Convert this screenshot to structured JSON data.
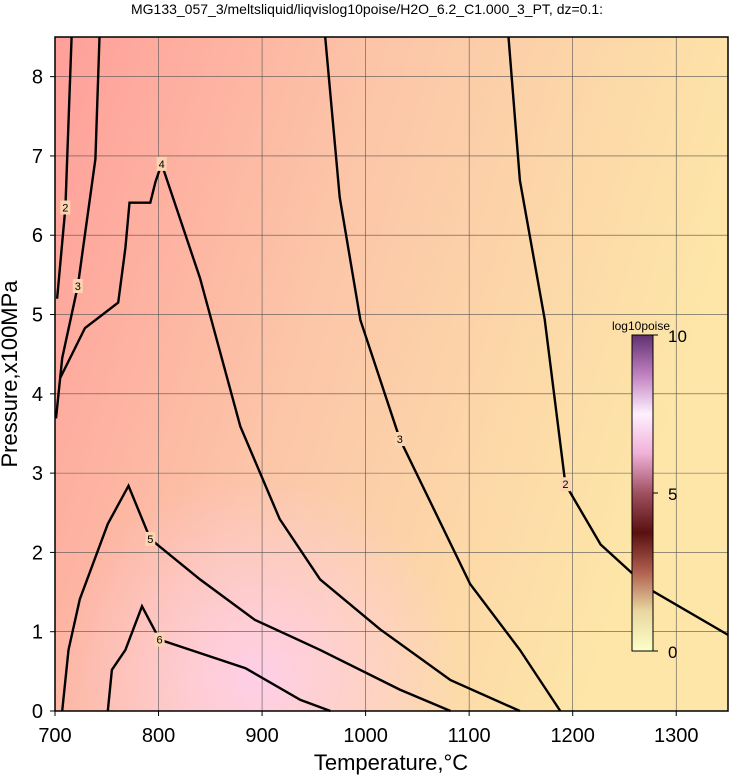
{
  "chart_data": {
    "type": "contour",
    "title": "MG133_057_3/meltsliquid/liqvislog10poise/H2O_6.2_C1.000_3_PT, dz=0.1:",
    "x_label": "Temperature,°C",
    "y_label": "Pressure,x100MPa",
    "xlim": [
      700,
      1350
    ],
    "ylim": [
      0,
      8.5
    ],
    "xticks": [
      700,
      800,
      900,
      1000,
      1100,
      1200,
      1300
    ],
    "yticks": [
      0,
      1,
      2,
      3,
      4,
      5,
      6,
      7,
      8
    ],
    "grid": true,
    "contours": [
      {
        "level": 2,
        "x": [
          1138,
          1149,
          1173,
          1193,
          1227,
          1275,
          1350
        ],
        "y": [
          8.5,
          6.69,
          4.94,
          2.86,
          2.1,
          1.53,
          0.96
        ]
      },
      {
        "level": 3,
        "x": [
          961,
          975,
          995,
          1033,
          1101,
          1149,
          1188
        ],
        "y": [
          8.5,
          6.48,
          4.93,
          3.43,
          1.6,
          0.77,
          0
        ]
      },
      {
        "level": 2,
        "x": [
          716,
          710,
          702
        ],
        "y": [
          8.5,
          6.35,
          5.2
        ]
      },
      {
        "level": 3,
        "x": [
          743,
          739,
          722,
          707,
          701
        ],
        "y": [
          8.5,
          6.96,
          5.36,
          4.45,
          3.69
        ]
      },
      {
        "level": 4,
        "x": [
          705,
          729,
          761,
          768,
          772,
          792,
          797,
          803,
          840,
          879,
          917,
          956,
          1014,
          1082,
          1149
        ],
        "y": [
          4.2,
          4.83,
          5.15,
          5.84,
          6.41,
          6.41,
          6.67,
          6.9,
          5.46,
          3.59,
          2.42,
          1.66,
          1.03,
          0.39,
          0
        ]
      },
      {
        "level": 5,
        "x": [
          707,
          713,
          724,
          751,
          771,
          792,
          840,
          893,
          956,
          1033,
          1082
        ],
        "y": [
          0,
          0.77,
          1.41,
          2.36,
          2.84,
          2.17,
          1.66,
          1.15,
          0.77,
          0.27,
          0
        ]
      },
      {
        "level": 6,
        "x": [
          751,
          755,
          768,
          784,
          801,
          884,
          937,
          966
        ],
        "y": [
          0,
          0.52,
          0.77,
          1.32,
          0.9,
          0.54,
          0.14,
          0
        ]
      }
    ],
    "colorbar": {
      "label": "log10poise",
      "lim": [
        0,
        10
      ],
      "ticks": [
        0,
        5,
        10
      ],
      "colors": [
        "#fcffc8",
        "#e8d8a0",
        "#b06050",
        "#5a1010",
        "#a05060",
        "#f0b0d8",
        "#fff0ff",
        "#c080c0",
        "#603070"
      ]
    }
  }
}
